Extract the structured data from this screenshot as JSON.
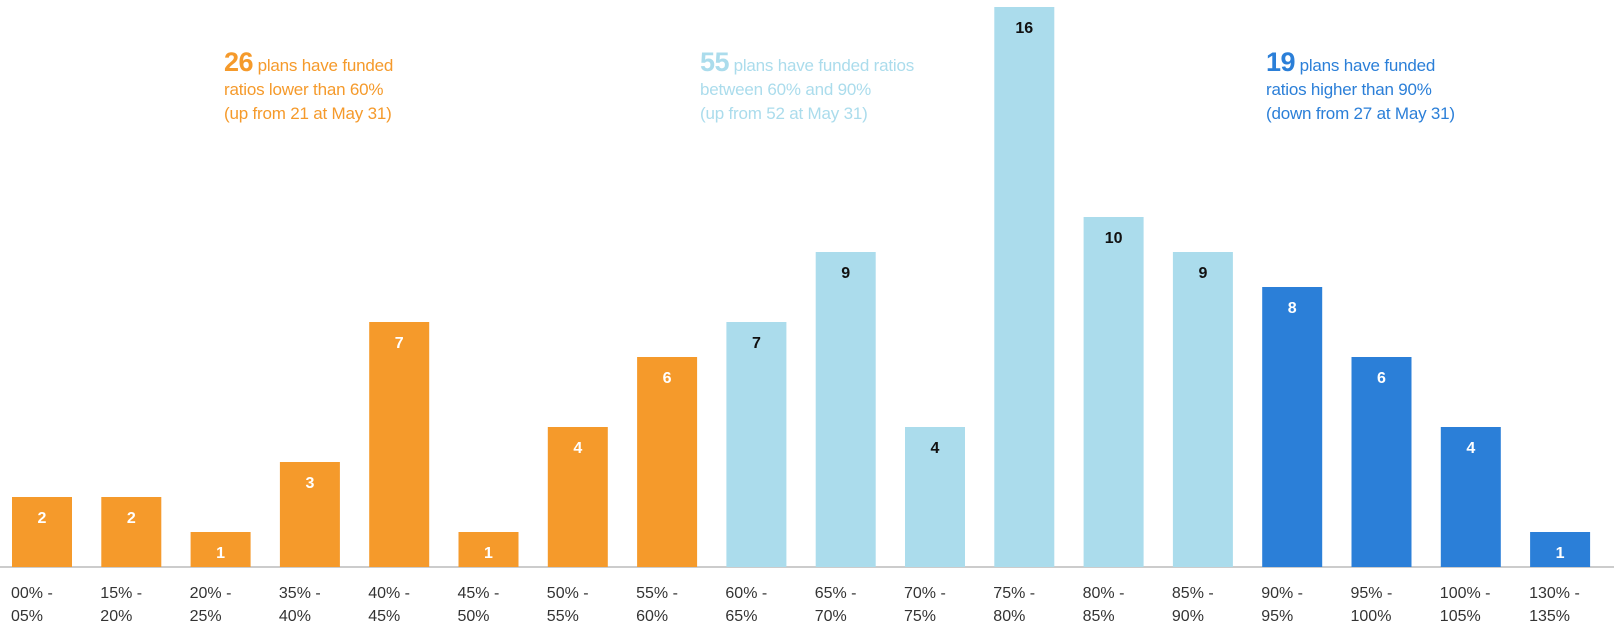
{
  "colors": {
    "low": "#f59a2b",
    "mid": "#abdcec",
    "high": "#2b7fd8",
    "label_on_dark": "#ffffff",
    "label_on_light": "#111111",
    "tick_text": "#333333",
    "axis_line": "#999999"
  },
  "annotations": {
    "low": {
      "number": "26",
      "line1": "plans have funded",
      "line2": "ratios lower than 60%",
      "line3": "(up from 21 at May 31)"
    },
    "mid": {
      "number": "55",
      "line1": "plans have funded ratios",
      "line2": "between 60% and 90%",
      "line3": "(up from 52 at May 31)"
    },
    "high": {
      "number": "19",
      "line1": "plans have funded",
      "line2": "ratios higher than 90%",
      "line3": "(down from 27 at May 31)"
    }
  },
  "chart_data": {
    "type": "bar",
    "title": "",
    "xlabel": "",
    "ylabel": "",
    "ylim": [
      0,
      16
    ],
    "grid": false,
    "legend": "none",
    "categories": [
      [
        "00% -",
        "05%"
      ],
      [
        "15% -",
        "20%"
      ],
      [
        "20% -",
        "25%"
      ],
      [
        "35% -",
        "40%"
      ],
      [
        "40% -",
        "45%"
      ],
      [
        "45% -",
        "50%"
      ],
      [
        "50% -",
        "55%"
      ],
      [
        "55% -",
        "60%"
      ],
      [
        "60% -",
        "65%"
      ],
      [
        "65% -",
        "70%"
      ],
      [
        "70% -",
        "75%"
      ],
      [
        "75% -",
        "80%"
      ],
      [
        "80% -",
        "85%"
      ],
      [
        "85% -",
        "90%"
      ],
      [
        "90% -",
        "95%"
      ],
      [
        "95% -",
        "100%"
      ],
      [
        "100% -",
        "105%"
      ],
      [
        "130% -",
        "135%"
      ]
    ],
    "values": [
      2,
      2,
      1,
      3,
      7,
      1,
      4,
      6,
      7,
      9,
      4,
      16,
      10,
      9,
      8,
      6,
      4,
      1
    ],
    "groups": [
      "low",
      "low",
      "low",
      "low",
      "low",
      "low",
      "low",
      "low",
      "mid",
      "mid",
      "mid",
      "mid",
      "mid",
      "mid",
      "high",
      "high",
      "high",
      "high"
    ],
    "data_labels": [
      "2",
      "2",
      "1",
      "3",
      "7",
      "1",
      "4",
      "6",
      "7",
      "9",
      "4",
      "16",
      "10",
      "9",
      "8",
      "6",
      "4",
      "1"
    ]
  }
}
